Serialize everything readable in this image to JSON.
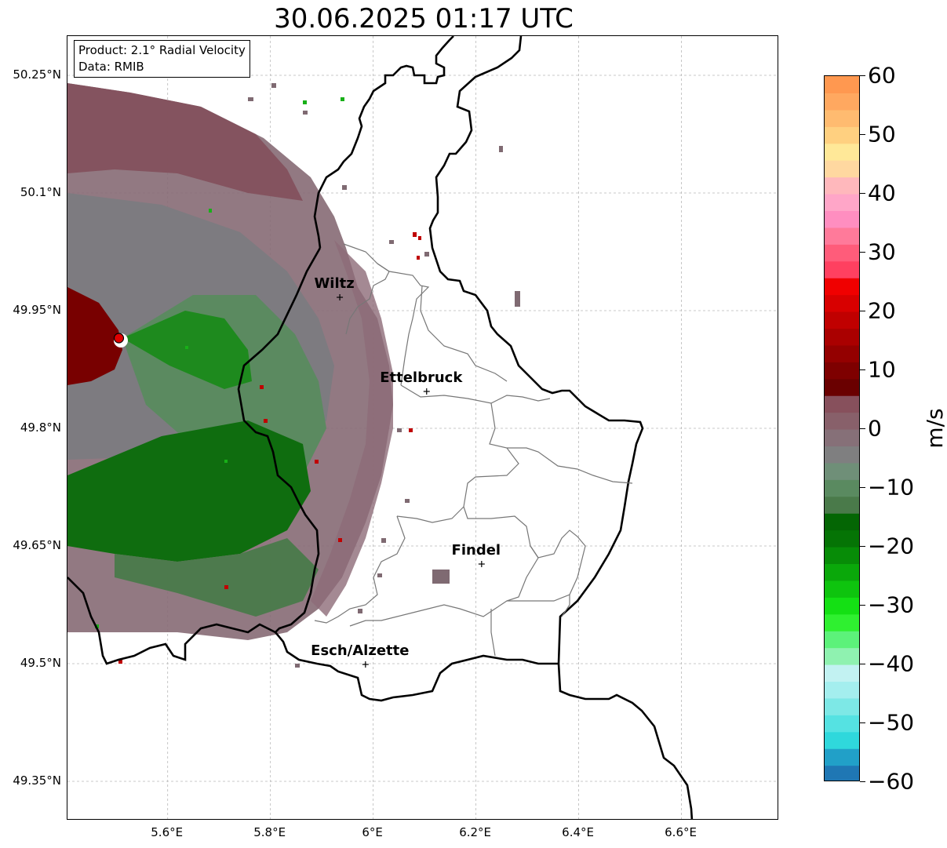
{
  "title": "30.06.2025 01:17 UTC",
  "info": {
    "product": "Product: 2.1° Radial Velocity",
    "data": "Data: RMIB"
  },
  "axes": {
    "lat_labels": [
      "50.25°N",
      "50.1°N",
      "49.95°N",
      "49.8°N",
      "49.65°N",
      "49.5°N",
      "49.35°N"
    ],
    "lat_values": [
      50.25,
      50.1,
      49.95,
      49.8,
      49.65,
      49.5,
      49.35
    ],
    "lon_labels": [
      "5.6°E",
      "5.8°E",
      "6°E",
      "6.2°E",
      "6.4°E",
      "6.6°E"
    ],
    "lon_values": [
      5.6,
      5.8,
      6.0,
      6.2,
      6.4,
      6.6
    ],
    "lon_range": [
      5.405,
      6.79
    ],
    "lat_range": [
      49.3,
      50.3
    ],
    "grid": true
  },
  "radar_site": {
    "lon": 5.505,
    "lat": 49.915,
    "color": "#e00000"
  },
  "cities": [
    {
      "name": "Wiltz",
      "lon": 5.935,
      "lat": 49.967
    },
    {
      "name": "Ettelbruck",
      "lon": 6.104,
      "lat": 49.847
    },
    {
      "name": "Findel",
      "lon": 6.211,
      "lat": 49.627
    },
    {
      "name": "Esch/Alzette",
      "lon": 5.985,
      "lat": 49.499
    }
  ],
  "colorbar": {
    "label": "m/s",
    "min": -60,
    "max": 60,
    "ticks": [
      "60",
      "50",
      "40",
      "30",
      "20",
      "10",
      "0",
      "−10",
      "−20",
      "−30",
      "−40",
      "−50",
      "−60"
    ],
    "tick_values": [
      60,
      50,
      40,
      30,
      20,
      10,
      0,
      -10,
      -20,
      -30,
      -40,
      -50,
      -60
    ],
    "colors": [
      "#1f77b4",
      "#21a0c8",
      "#2fd8dc",
      "#55e2e2",
      "#7de8e6",
      "#a4eeee",
      "#c2f2f2",
      "#8ff2b0",
      "#5cf27a",
      "#2ff030",
      "#14e014",
      "#0ec40e",
      "#0aa80a",
      "#078c07",
      "#057405",
      "#046604",
      "#4a7a4a",
      "#5a8a60",
      "#6f8f78",
      "#7f7f80",
      "#867078",
      "#88606a",
      "#87505c",
      "#6a0000",
      "#7e0000",
      "#940000",
      "#aa0000",
      "#c00000",
      "#d80000",
      "#f00000",
      "#ff4060",
      "#ff5c7a",
      "#ff7a9a",
      "#ff8ec0",
      "#ffa6c8",
      "#ffb8bc",
      "#ffd8a0",
      "#ffe898",
      "#ffd080",
      "#ffbb70",
      "#ffa860",
      "#ff9850"
    ]
  }
}
